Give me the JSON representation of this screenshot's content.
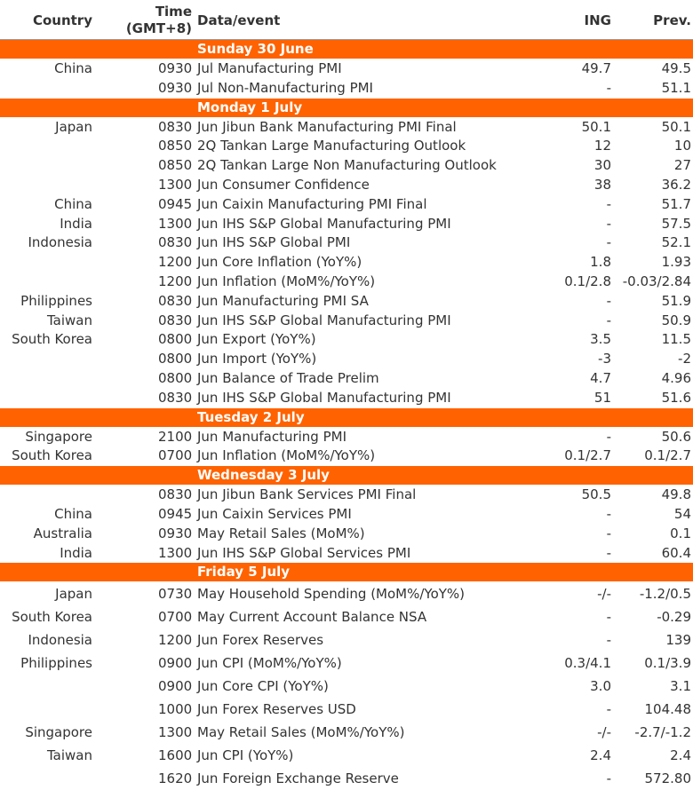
{
  "header": {
    "country": "Country",
    "time_line1": "Time",
    "time_line2": "(GMT+8)",
    "data": "Data/event",
    "ing": "ING",
    "prev": "Prev."
  },
  "sections": [
    {
      "day": "Sunday 30 June",
      "rows": [
        {
          "country": "China",
          "time": "0930",
          "event": "Jul Manufacturing PMI",
          "ing": "49.7",
          "prev": "49.5"
        },
        {
          "country": "",
          "time": "0930",
          "event": "Jul Non-Manufacturing PMI",
          "ing": "-",
          "prev": "51.1"
        }
      ]
    },
    {
      "day": "Monday 1 July",
      "rows": [
        {
          "country": "Japan",
          "time": "0830",
          "event": "Jun Jibun Bank Manufacturing PMI Final",
          "ing": "50.1",
          "prev": "50.1"
        },
        {
          "country": "",
          "time": "0850",
          "event": "2Q Tankan Large Manufacturing Outlook",
          "ing": "12",
          "prev": "10"
        },
        {
          "country": "",
          "time": "0850",
          "event": "2Q Tankan Large Non Manufacturing Outlook",
          "ing": "30",
          "prev": "27"
        },
        {
          "country": "",
          "time": "1300",
          "event": "Jun Consumer Confidence",
          "ing": "38",
          "prev": "36.2"
        },
        {
          "country": "China",
          "time": "0945",
          "event": "Jun Caixin Manufacturing PMI Final",
          "ing": "-",
          "prev": "51.7"
        },
        {
          "country": "India",
          "time": "1300",
          "event": "Jun IHS S&P Global Manufacturing PMI",
          "ing": "-",
          "prev": "57.5"
        },
        {
          "country": "Indonesia",
          "time": "0830",
          "event": "Jun IHS S&P Global PMI",
          "ing": "-",
          "prev": "52.1"
        },
        {
          "country": "",
          "time": "1200",
          "event": "Jun Core Inflation (YoY%)",
          "ing": "1.8",
          "prev": "1.93"
        },
        {
          "country": "",
          "time": "1200",
          "event": "Jun Inflation (MoM%/YoY%)",
          "ing": "0.1/2.8",
          "prev": "-0.03/2.84"
        },
        {
          "country": "Philippines",
          "time": "0830",
          "event": "Jun Manufacturing PMI SA",
          "ing": "-",
          "prev": "51.9"
        },
        {
          "country": "Taiwan",
          "time": "0830",
          "event": "Jun IHS S&P Global Manufacturing PMI",
          "ing": "-",
          "prev": "50.9"
        },
        {
          "country": "South Korea",
          "time": "0800",
          "event": "Jun Export (YoY%)",
          "ing": "3.5",
          "prev": "11.5"
        },
        {
          "country": "",
          "time": "0800",
          "event": "Jun Import (YoY%)",
          "ing": "-3",
          "prev": "-2"
        },
        {
          "country": "",
          "time": "0800",
          "event": "Jun Balance of Trade Prelim",
          "ing": "4.7",
          "prev": "4.96"
        },
        {
          "country": "",
          "time": "0830",
          "event": "Jun IHS S&P Global Manufacturing PMI",
          "ing": "51",
          "prev": "51.6"
        }
      ]
    },
    {
      "day": "Tuesday 2 July",
      "rows": [
        {
          "country": "Singapore",
          "time": "2100",
          "event": "Jun Manufacturing PMI",
          "ing": "-",
          "prev": "50.6"
        },
        {
          "country": "South Korea",
          "time": "0700",
          "event": "Jun Inflation (MoM%/YoY%)",
          "ing": "0.1/2.7",
          "prev": "0.1/2.7"
        }
      ]
    },
    {
      "day": "Wednesday 3 July",
      "rows": [
        {
          "country": "",
          "time": "0830",
          "event": "Jun Jibun Bank Services PMI Final",
          "ing": "50.5",
          "prev": "49.8"
        },
        {
          "country": "China",
          "time": "0945",
          "event": "Jun Caixin Services PMI",
          "ing": "-",
          "prev": "54"
        },
        {
          "country": "Australia",
          "time": "0930",
          "event": "May Retail Sales (MoM%)",
          "ing": "-",
          "prev": "0.1"
        },
        {
          "country": "India",
          "time": "1300",
          "event": "Jun IHS S&P Global Services PMI",
          "ing": "-",
          "prev": "60.4"
        }
      ]
    },
    {
      "day": "Friday 5 July",
      "rows": [
        {
          "country": "Japan",
          "time": "0730",
          "event": "May Household Spending (MoM%/YoY%)",
          "ing": "-/-",
          "prev": "-1.2/0.5"
        },
        {
          "country": "South Korea",
          "time": "0700",
          "event": "May Current Account Balance NSA",
          "ing": "-",
          "prev": "-0.29"
        },
        {
          "country": "Indonesia",
          "time": "1200",
          "event": "Jun Forex Reserves",
          "ing": "-",
          "prev": "139"
        },
        {
          "country": "Philippines",
          "time": "0900",
          "event": "Jun CPI (MoM%/YoY%)",
          "ing": "0.3/4.1",
          "prev": "0.1/3.9"
        },
        {
          "country": "",
          "time": "0900",
          "event": "Jun Core CPI (YoY%)",
          "ing": "3.0",
          "prev": "3.1"
        },
        {
          "country": "",
          "time": "1000",
          "event": "Jun Forex Reserves USD",
          "ing": "-",
          "prev": "104.48"
        },
        {
          "country": "Singapore",
          "time": "1300",
          "event": "May Retail Sales (MoM%/YoY%)",
          "ing": "-/-",
          "prev": "-2.7/-1.2"
        },
        {
          "country": "Taiwan",
          "time": "1600",
          "event": "Jun CPI (YoY%)",
          "ing": "2.4",
          "prev": "2.4"
        },
        {
          "country": "",
          "time": "1620",
          "event": "Jun Foreign Exchange Reserve",
          "ing": "-",
          "prev": "572.80"
        }
      ]
    }
  ]
}
